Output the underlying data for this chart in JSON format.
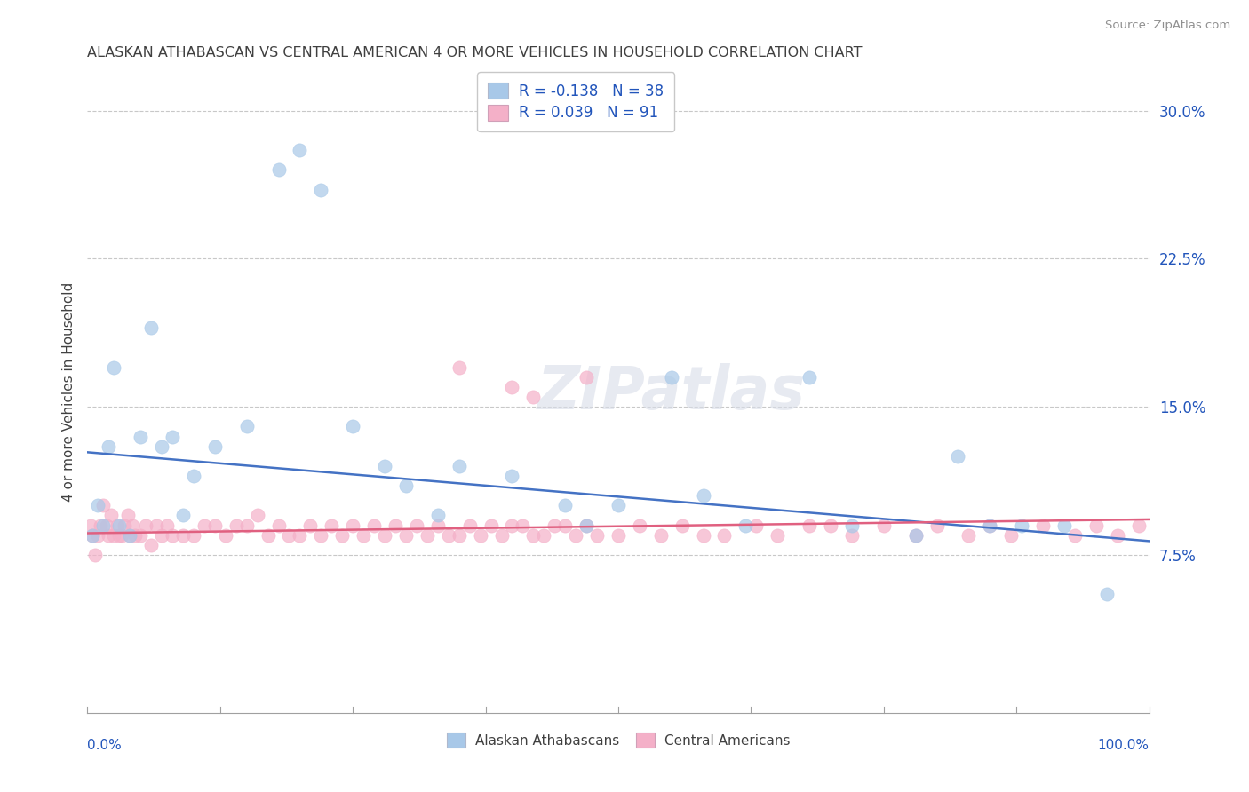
{
  "title": "ALASKAN ATHABASCAN VS CENTRAL AMERICAN 4 OR MORE VEHICLES IN HOUSEHOLD CORRELATION CHART",
  "source": "Source: ZipAtlas.com",
  "ylabel": "4 or more Vehicles in Household",
  "yticks": [
    0.075,
    0.15,
    0.225,
    0.3
  ],
  "ytick_labels": [
    "7.5%",
    "15.0%",
    "22.5%",
    "30.0%"
  ],
  "xlim": [
    0,
    100
  ],
  "ylim": [
    -0.005,
    0.32
  ],
  "blue_R": -0.138,
  "blue_N": 38,
  "pink_R": 0.039,
  "pink_N": 91,
  "blue_color": "#a8c8e8",
  "pink_color": "#f4b0c8",
  "blue_line_color": "#4472c4",
  "pink_line_color": "#e06080",
  "title_color": "#404040",
  "source_color": "#909090",
  "legend_R_color": "#2255bb",
  "axis_label_color": "#2255bb",
  "blue_scatter_x": [
    0.5,
    1.0,
    1.5,
    2.0,
    2.5,
    3.0,
    4.0,
    5.0,
    6.0,
    7.0,
    8.0,
    9.0,
    10.0,
    12.0,
    15.0,
    18.0,
    20.0,
    22.0,
    25.0,
    28.0,
    30.0,
    33.0,
    35.0,
    40.0,
    45.0,
    47.0,
    50.0,
    55.0,
    58.0,
    62.0,
    68.0,
    72.0,
    78.0,
    82.0,
    85.0,
    88.0,
    92.0,
    96.0
  ],
  "blue_scatter_y": [
    0.085,
    0.1,
    0.09,
    0.13,
    0.17,
    0.09,
    0.085,
    0.135,
    0.19,
    0.13,
    0.135,
    0.095,
    0.115,
    0.13,
    0.14,
    0.27,
    0.28,
    0.26,
    0.14,
    0.12,
    0.11,
    0.095,
    0.12,
    0.115,
    0.1,
    0.09,
    0.1,
    0.165,
    0.105,
    0.09,
    0.165,
    0.09,
    0.085,
    0.125,
    0.09,
    0.09,
    0.09,
    0.055
  ],
  "pink_scatter_x": [
    0.3,
    0.5,
    0.7,
    1.0,
    1.2,
    1.5,
    1.8,
    2.0,
    2.2,
    2.5,
    2.8,
    3.0,
    3.2,
    3.5,
    3.8,
    4.0,
    4.2,
    4.5,
    5.0,
    5.5,
    6.0,
    6.5,
    7.0,
    7.5,
    8.0,
    9.0,
    10.0,
    11.0,
    12.0,
    13.0,
    14.0,
    15.0,
    16.0,
    17.0,
    18.0,
    19.0,
    20.0,
    21.0,
    22.0,
    23.0,
    24.0,
    25.0,
    26.0,
    27.0,
    28.0,
    29.0,
    30.0,
    31.0,
    32.0,
    33.0,
    34.0,
    35.0,
    36.0,
    37.0,
    38.0,
    39.0,
    40.0,
    41.0,
    42.0,
    43.0,
    44.0,
    45.0,
    46.0,
    47.0,
    48.0,
    50.0,
    52.0,
    54.0,
    56.0,
    58.0,
    60.0,
    63.0,
    65.0,
    68.0,
    70.0,
    72.0,
    75.0,
    78.0,
    80.0,
    83.0,
    85.0,
    87.0,
    90.0,
    93.0,
    95.0,
    97.0,
    99.0,
    35.0,
    40.0,
    42.0,
    47.0
  ],
  "pink_scatter_y": [
    0.09,
    0.085,
    0.075,
    0.085,
    0.09,
    0.1,
    0.09,
    0.085,
    0.095,
    0.085,
    0.09,
    0.085,
    0.085,
    0.09,
    0.095,
    0.085,
    0.09,
    0.085,
    0.085,
    0.09,
    0.08,
    0.09,
    0.085,
    0.09,
    0.085,
    0.085,
    0.085,
    0.09,
    0.09,
    0.085,
    0.09,
    0.09,
    0.095,
    0.085,
    0.09,
    0.085,
    0.085,
    0.09,
    0.085,
    0.09,
    0.085,
    0.09,
    0.085,
    0.09,
    0.085,
    0.09,
    0.085,
    0.09,
    0.085,
    0.09,
    0.085,
    0.085,
    0.09,
    0.085,
    0.09,
    0.085,
    0.09,
    0.09,
    0.085,
    0.085,
    0.09,
    0.09,
    0.085,
    0.09,
    0.085,
    0.085,
    0.09,
    0.085,
    0.09,
    0.085,
    0.085,
    0.09,
    0.085,
    0.09,
    0.09,
    0.085,
    0.09,
    0.085,
    0.09,
    0.085,
    0.09,
    0.085,
    0.09,
    0.085,
    0.09,
    0.085,
    0.09,
    0.17,
    0.16,
    0.155,
    0.165
  ]
}
